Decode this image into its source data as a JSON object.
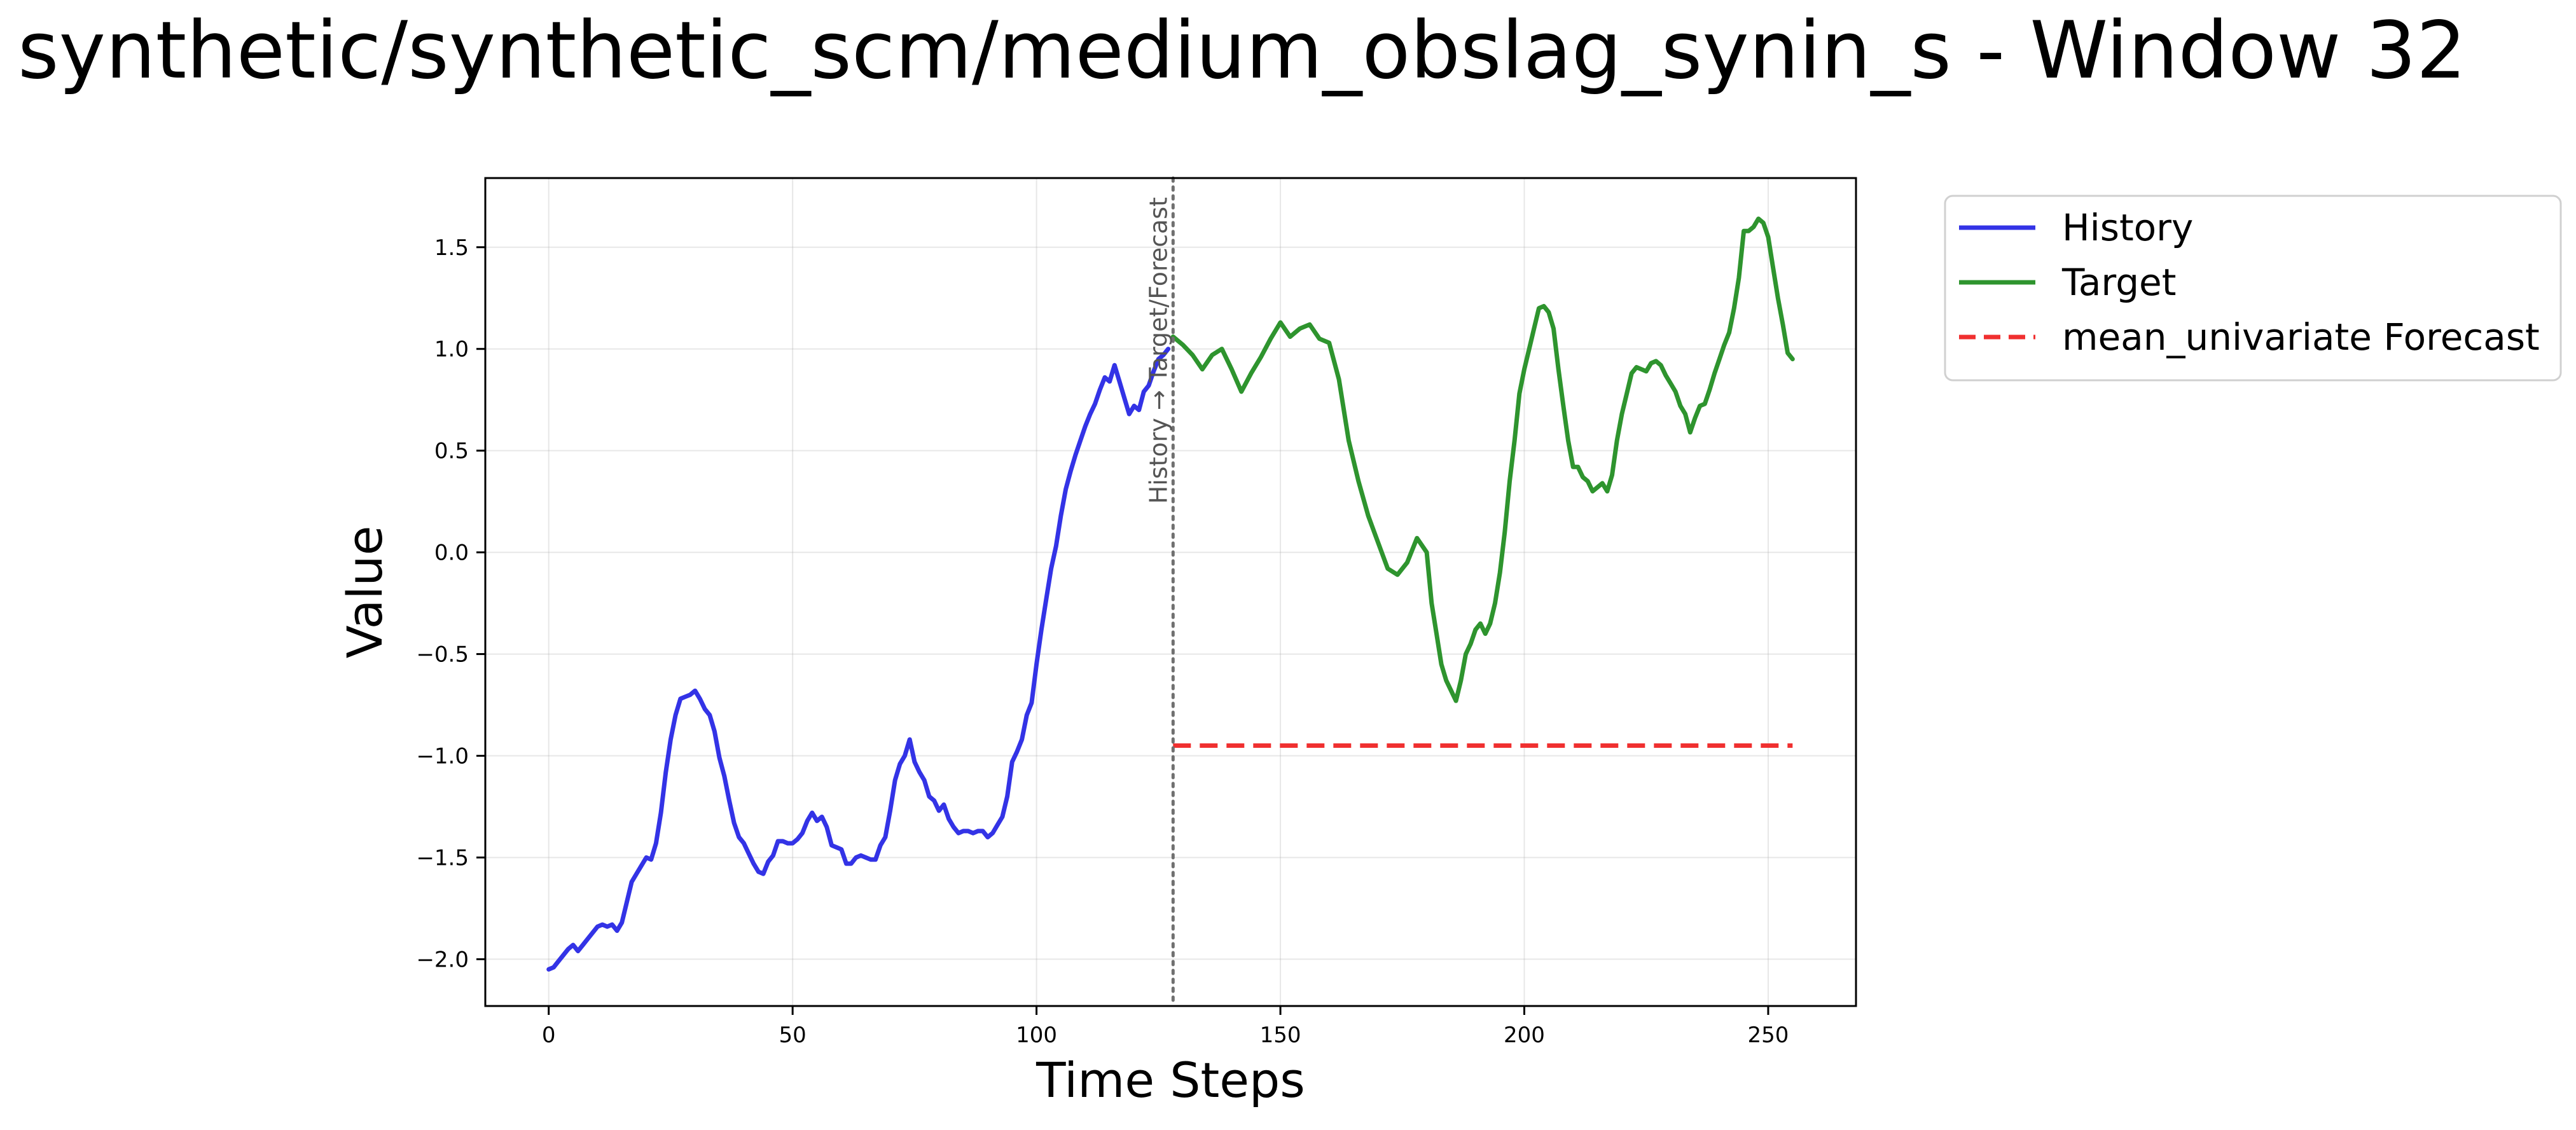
{
  "chart_data": {
    "type": "line",
    "title": "synthetic/synthetic_scm/medium_obslag_synin_s - Window 32",
    "xlabel": "Time Steps",
    "ylabel": "Value",
    "xlim": [
      -13,
      268
    ],
    "ylim": [
      -2.23,
      1.84
    ],
    "xticks": [
      0,
      50,
      100,
      150,
      200,
      250
    ],
    "yticks": [
      -2.0,
      -1.5,
      -1.0,
      -0.5,
      0.0,
      0.5,
      1.0,
      1.5
    ],
    "xtick_labels": [
      "0",
      "50",
      "100",
      "150",
      "200",
      "250"
    ],
    "ytick_labels": [
      "−2.0",
      "−1.5",
      "−1.0",
      "−0.5",
      "0.0",
      "0.5",
      "1.0",
      "1.5"
    ],
    "grid": true,
    "legend_position": "outside upper right",
    "split": {
      "x": 128,
      "label": "History → Target/Forecast"
    },
    "series": [
      {
        "name": "History",
        "color": "#3333e6",
        "style": "solid",
        "points": [
          [
            0,
            -2.05
          ],
          [
            1,
            -2.04
          ],
          [
            2,
            -2.01
          ],
          [
            3,
            -1.98
          ],
          [
            4,
            -1.95
          ],
          [
            5,
            -1.93
          ],
          [
            6,
            -1.96
          ],
          [
            7,
            -1.93
          ],
          [
            8,
            -1.9
          ],
          [
            9,
            -1.87
          ],
          [
            10,
            -1.84
          ],
          [
            11,
            -1.83
          ],
          [
            12,
            -1.84
          ],
          [
            13,
            -1.83
          ],
          [
            14,
            -1.86
          ],
          [
            15,
            -1.82
          ],
          [
            16,
            -1.72
          ],
          [
            17,
            -1.62
          ],
          [
            18,
            -1.58
          ],
          [
            19,
            -1.54
          ],
          [
            20,
            -1.5
          ],
          [
            21,
            -1.51
          ],
          [
            22,
            -1.43
          ],
          [
            23,
            -1.28
          ],
          [
            24,
            -1.08
          ],
          [
            25,
            -0.92
          ],
          [
            26,
            -0.8
          ],
          [
            27,
            -0.72
          ],
          [
            28,
            -0.71
          ],
          [
            29,
            -0.7
          ],
          [
            30,
            -0.68
          ],
          [
            31,
            -0.72
          ],
          [
            32,
            -0.77
          ],
          [
            33,
            -0.8
          ],
          [
            34,
            -0.88
          ],
          [
            35,
            -1.01
          ],
          [
            36,
            -1.1
          ],
          [
            37,
            -1.22
          ],
          [
            38,
            -1.33
          ],
          [
            39,
            -1.4
          ],
          [
            40,
            -1.43
          ],
          [
            41,
            -1.48
          ],
          [
            42,
            -1.53
          ],
          [
            43,
            -1.57
          ],
          [
            44,
            -1.58
          ],
          [
            45,
            -1.52
          ],
          [
            46,
            -1.49
          ],
          [
            47,
            -1.42
          ],
          [
            48,
            -1.42
          ],
          [
            49,
            -1.43
          ],
          [
            50,
            -1.43
          ],
          [
            51,
            -1.41
          ],
          [
            52,
            -1.38
          ],
          [
            53,
            -1.32
          ],
          [
            54,
            -1.28
          ],
          [
            55,
            -1.32
          ],
          [
            56,
            -1.3
          ],
          [
            57,
            -1.35
          ],
          [
            58,
            -1.44
          ],
          [
            59,
            -1.45
          ],
          [
            60,
            -1.46
          ],
          [
            61,
            -1.53
          ],
          [
            62,
            -1.53
          ],
          [
            63,
            -1.5
          ],
          [
            64,
            -1.49
          ],
          [
            65,
            -1.5
          ],
          [
            66,
            -1.51
          ],
          [
            67,
            -1.51
          ],
          [
            68,
            -1.44
          ],
          [
            69,
            -1.4
          ],
          [
            70,
            -1.27
          ],
          [
            71,
            -1.12
          ],
          [
            72,
            -1.04
          ],
          [
            73,
            -1.0
          ],
          [
            74,
            -0.92
          ],
          [
            75,
            -1.03
          ],
          [
            76,
            -1.08
          ],
          [
            77,
            -1.12
          ],
          [
            78,
            -1.2
          ],
          [
            79,
            -1.22
          ],
          [
            80,
            -1.27
          ],
          [
            81,
            -1.24
          ],
          [
            82,
            -1.31
          ],
          [
            83,
            -1.35
          ],
          [
            84,
            -1.38
          ],
          [
            85,
            -1.37
          ],
          [
            86,
            -1.37
          ],
          [
            87,
            -1.38
          ],
          [
            88,
            -1.37
          ],
          [
            89,
            -1.37
          ],
          [
            90,
            -1.4
          ],
          [
            91,
            -1.38
          ],
          [
            92,
            -1.34
          ],
          [
            93,
            -1.3
          ],
          [
            94,
            -1.2
          ],
          [
            95,
            -1.03
          ],
          [
            96,
            -0.98
          ],
          [
            97,
            -0.92
          ],
          [
            98,
            -0.8
          ],
          [
            99,
            -0.74
          ],
          [
            100,
            -0.55
          ],
          [
            101,
            -0.38
          ],
          [
            102,
            -0.23
          ],
          [
            103,
            -0.08
          ],
          [
            104,
            0.03
          ],
          [
            105,
            0.18
          ],
          [
            106,
            0.31
          ],
          [
            107,
            0.4
          ],
          [
            108,
            0.48
          ],
          [
            109,
            0.55
          ],
          [
            110,
            0.62
          ],
          [
            111,
            0.68
          ],
          [
            112,
            0.73
          ],
          [
            113,
            0.8
          ],
          [
            114,
            0.86
          ],
          [
            115,
            0.84
          ],
          [
            116,
            0.92
          ],
          [
            117,
            0.84
          ],
          [
            118,
            0.76
          ],
          [
            119,
            0.68
          ],
          [
            120,
            0.72
          ],
          [
            121,
            0.7
          ],
          [
            122,
            0.79
          ],
          [
            123,
            0.82
          ],
          [
            124,
            0.89
          ],
          [
            125,
            0.95
          ],
          [
            126,
            0.97
          ],
          [
            127,
            1.0
          ]
        ]
      },
      {
        "name": "Target",
        "color": "#2e942e",
        "style": "solid",
        "points": [
          [
            128,
            1.06
          ],
          [
            130,
            1.02
          ],
          [
            132,
            0.97
          ],
          [
            134,
            0.9
          ],
          [
            136,
            0.97
          ],
          [
            138,
            1.0
          ],
          [
            140,
            0.9
          ],
          [
            142,
            0.79
          ],
          [
            144,
            0.88
          ],
          [
            146,
            0.96
          ],
          [
            148,
            1.05
          ],
          [
            150,
            1.13
          ],
          [
            152,
            1.06
          ],
          [
            154,
            1.1
          ],
          [
            156,
            1.12
          ],
          [
            158,
            1.05
          ],
          [
            160,
            1.03
          ],
          [
            162,
            0.85
          ],
          [
            164,
            0.55
          ],
          [
            166,
            0.35
          ],
          [
            168,
            0.18
          ],
          [
            170,
            0.05
          ],
          [
            172,
            -0.08
          ],
          [
            174,
            -0.11
          ],
          [
            176,
            -0.05
          ],
          [
            178,
            0.07
          ],
          [
            180,
            0.0
          ],
          [
            181,
            -0.25
          ],
          [
            182,
            -0.4
          ],
          [
            183,
            -0.55
          ],
          [
            184,
            -0.63
          ],
          [
            185,
            -0.68
          ],
          [
            186,
            -0.73
          ],
          [
            187,
            -0.63
          ],
          [
            188,
            -0.5
          ],
          [
            189,
            -0.45
          ],
          [
            190,
            -0.38
          ],
          [
            191,
            -0.35
          ],
          [
            192,
            -0.4
          ],
          [
            193,
            -0.35
          ],
          [
            194,
            -0.25
          ],
          [
            195,
            -0.1
          ],
          [
            196,
            0.1
          ],
          [
            197,
            0.35
          ],
          [
            198,
            0.55
          ],
          [
            199,
            0.78
          ],
          [
            200,
            0.9
          ],
          [
            201,
            1.0
          ],
          [
            202,
            1.1
          ],
          [
            203,
            1.2
          ],
          [
            204,
            1.21
          ],
          [
            205,
            1.18
          ],
          [
            206,
            1.1
          ],
          [
            207,
            0.9
          ],
          [
            208,
            0.72
          ],
          [
            209,
            0.55
          ],
          [
            210,
            0.42
          ],
          [
            211,
            0.42
          ],
          [
            212,
            0.37
          ],
          [
            213,
            0.35
          ],
          [
            214,
            0.3
          ],
          [
            215,
            0.32
          ],
          [
            216,
            0.34
          ],
          [
            217,
            0.3
          ],
          [
            218,
            0.38
          ],
          [
            219,
            0.55
          ],
          [
            220,
            0.68
          ],
          [
            221,
            0.78
          ],
          [
            222,
            0.88
          ],
          [
            223,
            0.91
          ],
          [
            224,
            0.9
          ],
          [
            225,
            0.89
          ],
          [
            226,
            0.93
          ],
          [
            227,
            0.94
          ],
          [
            228,
            0.92
          ],
          [
            229,
            0.87
          ],
          [
            230,
            0.83
          ],
          [
            231,
            0.79
          ],
          [
            232,
            0.72
          ],
          [
            233,
            0.68
          ],
          [
            234,
            0.59
          ],
          [
            235,
            0.66
          ],
          [
            236,
            0.72
          ],
          [
            237,
            0.73
          ],
          [
            238,
            0.8
          ],
          [
            239,
            0.88
          ],
          [
            240,
            0.95
          ],
          [
            241,
            1.02
          ],
          [
            242,
            1.08
          ],
          [
            243,
            1.2
          ],
          [
            244,
            1.35
          ],
          [
            245,
            1.58
          ],
          [
            246,
            1.58
          ],
          [
            247,
            1.6
          ],
          [
            248,
            1.64
          ],
          [
            249,
            1.62
          ],
          [
            250,
            1.55
          ],
          [
            251,
            1.4
          ],
          [
            252,
            1.25
          ],
          [
            253,
            1.12
          ],
          [
            254,
            0.98
          ],
          [
            255,
            0.95
          ]
        ]
      },
      {
        "name": "mean_univariate Forecast",
        "color": "#f03030",
        "style": "dashed",
        "points": [
          [
            128,
            -0.95
          ],
          [
            255,
            -0.95
          ]
        ]
      }
    ]
  }
}
